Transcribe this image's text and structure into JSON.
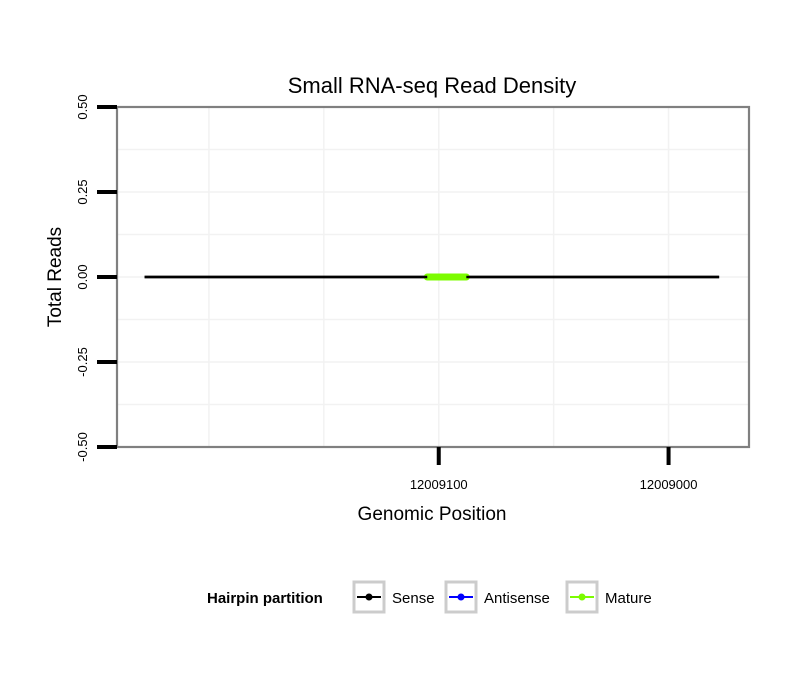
{
  "chart_data": {
    "type": "line",
    "title": "Small RNA-seq Read Density",
    "xlabel": "Genomic Position",
    "ylabel": "Total Reads",
    "x_reversed": true,
    "xlim": [
      12009240,
      12008965
    ],
    "ylim": [
      -0.5,
      0.5
    ],
    "x_ticks": [
      {
        "value": 12009100,
        "label": "12009100"
      },
      {
        "value": 12009000,
        "label": "12009000"
      }
    ],
    "y_ticks": [
      {
        "value": 0.5,
        "label": "0.50"
      },
      {
        "value": 0.25,
        "label": "0.25"
      },
      {
        "value": 0.0,
        "label": "0.00"
      },
      {
        "value": -0.25,
        "label": "-0.25"
      },
      {
        "value": -0.5,
        "label": "-0.50"
      }
    ],
    "grid": true,
    "series": [
      {
        "name": "Sense",
        "color": "#000000",
        "x": [
          12009228,
          12008978
        ],
        "y": [
          0,
          0
        ]
      },
      {
        "name": "Antisense",
        "color": "#0000ff",
        "x": [
          12009228,
          12008978
        ],
        "y": [
          0,
          0
        ]
      },
      {
        "name": "Mature",
        "color": "#7cfc00",
        "x": [
          12009105,
          12009088
        ],
        "y": [
          0,
          0
        ]
      }
    ],
    "legend": {
      "title": "Hairpin partition",
      "position": "bottom",
      "items": [
        {
          "label": "Sense",
          "color": "#000000"
        },
        {
          "label": "Antisense",
          "color": "#0000ff"
        },
        {
          "label": "Mature",
          "color": "#7cfc00"
        }
      ]
    }
  }
}
